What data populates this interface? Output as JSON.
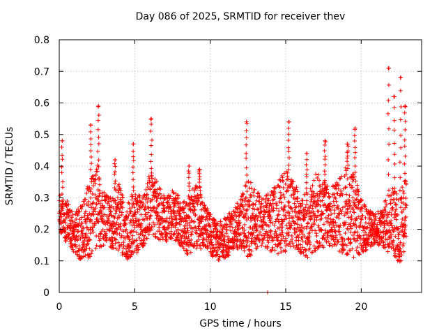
{
  "chart_data": {
    "type": "scatter",
    "title": "Day 086 of 2025, SRMTID for receiver thev",
    "xlabel": "GPS time / hours",
    "ylabel": "SRMTID / TECUs",
    "xlim": [
      0,
      24
    ],
    "ylim": [
      0,
      0.8
    ],
    "xticks": [
      0,
      5,
      10,
      15,
      20
    ],
    "xtick_labels": [
      "0",
      "5",
      "10",
      "15",
      "20"
    ],
    "yticks": [
      0,
      0.1,
      0.2,
      0.3,
      0.4,
      0.5,
      0.6,
      0.7,
      0.8
    ],
    "ytick_labels": [
      "0",
      "0.1",
      "0.2",
      "0.3",
      "0.4",
      "0.5",
      "0.6",
      "0.7",
      "0.8"
    ],
    "grid": true,
    "marker": "plus",
    "color": "#ff0000",
    "envelope": {
      "x": [
        0,
        0.5,
        1,
        1.5,
        2,
        2.5,
        3,
        3.5,
        4,
        4.5,
        5,
        5.5,
        6,
        6.5,
        7,
        7.5,
        8,
        8.5,
        9,
        9.5,
        10,
        10.5,
        11,
        11.5,
        12,
        12.5,
        13,
        13.5,
        14,
        14.5,
        15,
        15.5,
        16,
        16.5,
        17,
        17.5,
        18,
        18.5,
        19,
        19.5,
        20,
        20.5,
        21,
        21.5,
        22,
        22.5,
        23
      ],
      "low": [
        0.2,
        0.15,
        0.12,
        0.1,
        0.11,
        0.13,
        0.15,
        0.14,
        0.13,
        0.1,
        0.12,
        0.14,
        0.18,
        0.17,
        0.16,
        0.17,
        0.15,
        0.12,
        0.13,
        0.14,
        0.12,
        0.1,
        0.11,
        0.12,
        0.14,
        0.1,
        0.13,
        0.15,
        0.13,
        0.12,
        0.13,
        0.14,
        0.12,
        0.11,
        0.13,
        0.14,
        0.15,
        0.13,
        0.12,
        0.11,
        0.12,
        0.14,
        0.15,
        0.14,
        0.12,
        0.08,
        0.14
      ],
      "high": [
        0.32,
        0.3,
        0.25,
        0.28,
        0.35,
        0.42,
        0.32,
        0.3,
        0.35,
        0.28,
        0.33,
        0.3,
        0.38,
        0.35,
        0.3,
        0.33,
        0.3,
        0.28,
        0.35,
        0.3,
        0.25,
        0.22,
        0.24,
        0.26,
        0.3,
        0.36,
        0.33,
        0.3,
        0.32,
        0.35,
        0.4,
        0.36,
        0.3,
        0.32,
        0.38,
        0.36,
        0.33,
        0.36,
        0.4,
        0.38,
        0.3,
        0.26,
        0.25,
        0.28,
        0.35,
        0.3,
        0.4
      ]
    },
    "spikes": [
      {
        "x": 0.2,
        "y": 0.48
      },
      {
        "x": 2.1,
        "y": 0.53
      },
      {
        "x": 2.6,
        "y": 0.59
      },
      {
        "x": 3.7,
        "y": 0.42
      },
      {
        "x": 4.9,
        "y": 0.47
      },
      {
        "x": 6.1,
        "y": 0.55
      },
      {
        "x": 8.6,
        "y": 0.4
      },
      {
        "x": 9.3,
        "y": 0.39
      },
      {
        "x": 12.4,
        "y": 0.54
      },
      {
        "x": 15.2,
        "y": 0.54
      },
      {
        "x": 16.4,
        "y": 0.44
      },
      {
        "x": 17.6,
        "y": 0.48
      },
      {
        "x": 19.1,
        "y": 0.47
      },
      {
        "x": 19.6,
        "y": 0.52
      },
      {
        "x": 21.8,
        "y": 0.71
      },
      {
        "x": 22.2,
        "y": 0.62
      },
      {
        "x": 22.6,
        "y": 0.68
      },
      {
        "x": 22.9,
        "y": 0.59
      }
    ],
    "outliers": [
      {
        "x": 13.8,
        "y": 0.0
      }
    ]
  }
}
